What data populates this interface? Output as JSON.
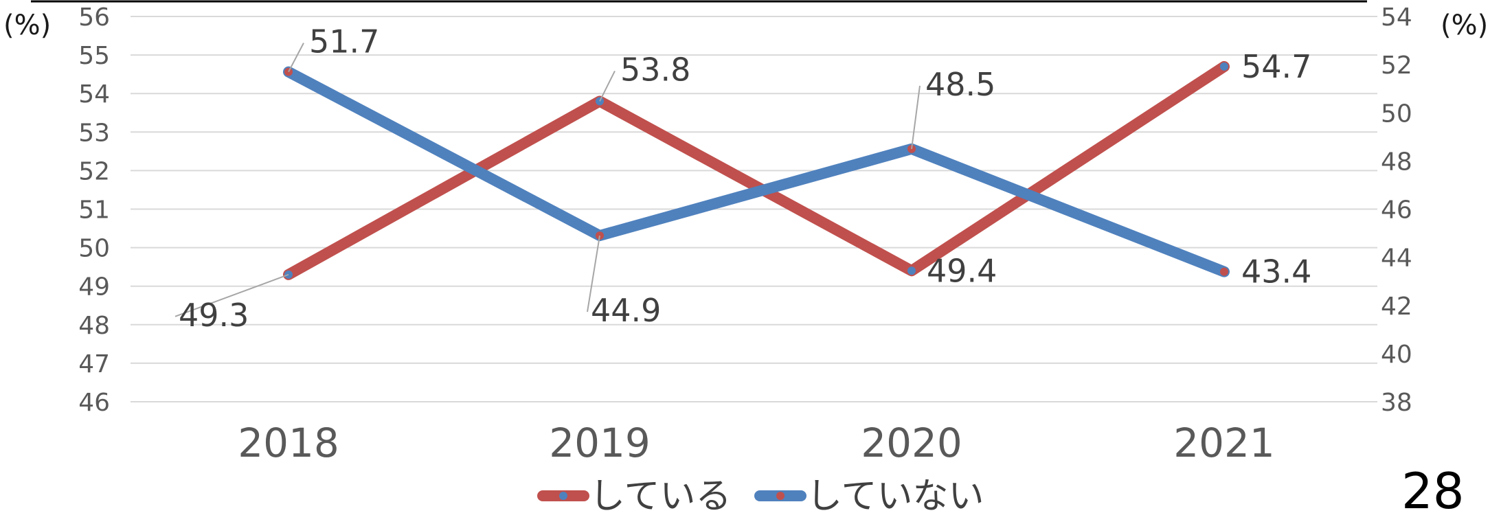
{
  "chart_data": {
    "type": "line",
    "categories": [
      "2018",
      "2019",
      "2020",
      "2021"
    ],
    "series": [
      {
        "name": "している",
        "axis": "left",
        "color": "#c0504d",
        "values": [
          49.3,
          53.8,
          49.4,
          54.7
        ]
      },
      {
        "name": "していない",
        "axis": "right",
        "color": "#4f81bd",
        "values": [
          51.7,
          44.9,
          48.5,
          43.4
        ]
      }
    ],
    "y_left": {
      "min": 46,
      "max": 56,
      "step": 1,
      "unit": "(%)"
    },
    "y_right": {
      "min": 38,
      "max": 54,
      "step": 2,
      "unit": "(%)"
    },
    "grid": true,
    "legend": "bottom-center"
  },
  "page_number": "28"
}
